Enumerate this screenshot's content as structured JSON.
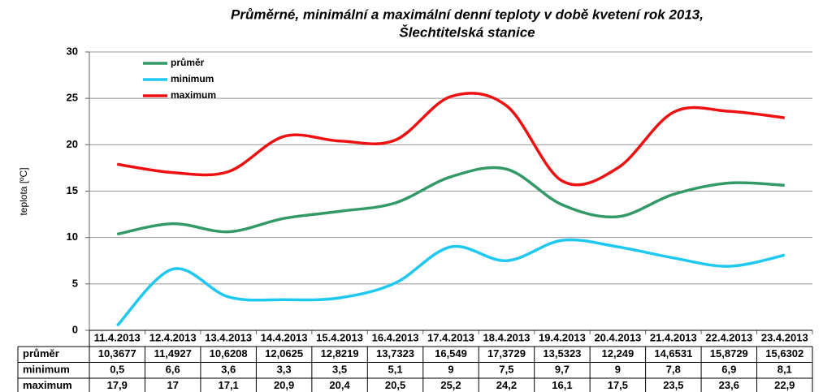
{
  "chart_data": {
    "type": "line",
    "title": "Průměrné, minimální a maximální denní teploty v době kvetení rok 2013,",
    "subtitle": "Šlechtitelská stanice",
    "y_label": "teplota [ºC]",
    "categories": [
      "11.4.2013",
      "12.4.2013",
      "13.4.2013",
      "14.4.2013",
      "15.4.2013",
      "16.4.2013",
      "17.4.2013",
      "18.4.2013",
      "19.4.2013",
      "20.4.2013",
      "21.4.2013",
      "22.4.2013",
      "23.4.2013"
    ],
    "series": [
      {
        "name": "průměr",
        "color": "#339966",
        "values": [
          10.3677,
          11.4927,
          10.6208,
          12.0625,
          12.8219,
          13.7323,
          16.549,
          17.3729,
          13.5323,
          12.249,
          14.6531,
          15.8729,
          15.6302
        ],
        "value_labels": [
          "10,3677",
          "11,4927",
          "10,6208",
          "12,0625",
          "12,8219",
          "13,7323",
          "16,549",
          "17,3729",
          "13,5323",
          "12,249",
          "14,6531",
          "15,8729",
          "15,6302"
        ]
      },
      {
        "name": "minimum",
        "color": "#1ec8f0",
        "values": [
          0.5,
          6.6,
          3.6,
          3.3,
          3.5,
          5.1,
          9,
          7.5,
          9.7,
          9,
          7.8,
          6.9,
          8.1
        ],
        "value_labels": [
          "0,5",
          "6,6",
          "3,6",
          "3,3",
          "3,5",
          "5,1",
          "9",
          "7,5",
          "9,7",
          "9",
          "7,8",
          "6,9",
          "8,1"
        ]
      },
      {
        "name": "maximum",
        "color": "#ee1111",
        "values": [
          17.9,
          17,
          17.1,
          20.9,
          20.4,
          20.5,
          25.2,
          24.2,
          16.1,
          17.5,
          23.5,
          23.6,
          22.9
        ],
        "value_labels": [
          "17,9",
          "17",
          "17,1",
          "20,9",
          "20,4",
          "20,5",
          "25,2",
          "24,2",
          "16,1",
          "17,5",
          "23,5",
          "23,6",
          "22,9"
        ]
      }
    ],
    "ylim": [
      0,
      30
    ],
    "yticks": [
      0,
      5,
      10,
      15,
      20,
      25,
      30
    ],
    "grid": true,
    "legend": "upper left"
  }
}
